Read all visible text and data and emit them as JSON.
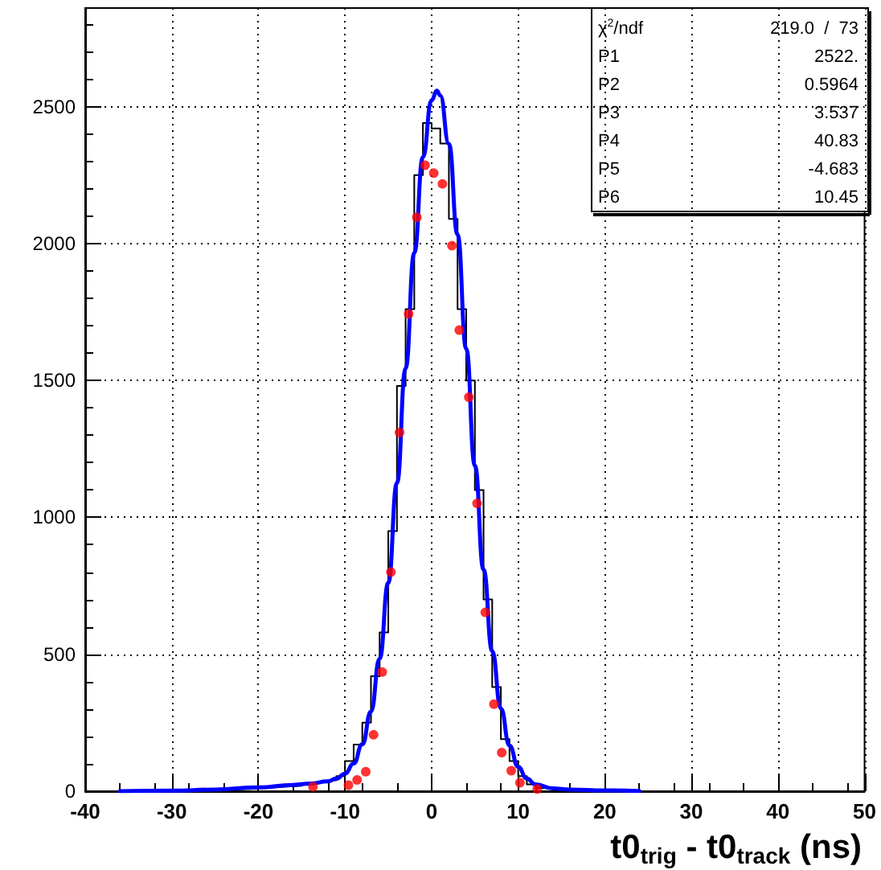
{
  "chart_data": {
    "type": "histogram",
    "xlabel": "t0$_{trig}$ - t0$_{track}$ (ns)",
    "xlim": [
      -40,
      50
    ],
    "xticks": [
      -40,
      -30,
      -20,
      -10,
      0,
      10,
      20,
      30,
      40,
      50
    ],
    "ylim": [
      0,
      2860
    ],
    "yticks": [
      0,
      500,
      1000,
      1500,
      2000,
      2500
    ],
    "grid": true,
    "annotations": [
      "χ$^{2}$/ndf 219.0  /  73",
      "P1 2522.",
      "P2 0.5964",
      "P3 3.537",
      "P4 40.83",
      "P5 -4.683",
      "P6 10.45"
    ],
    "series": [
      {
        "type": "histogram",
        "color": "#000000",
        "bins": [
          -36,
          -35,
          -34,
          -33,
          -32,
          -31,
          -30,
          -29,
          -28,
          -27,
          -26,
          -25,
          -24,
          -23,
          -22,
          -21,
          -20,
          -19,
          -18,
          -17,
          -16,
          -15,
          -14,
          -13,
          -12,
          -11,
          -10,
          -9,
          -8,
          -7,
          -6,
          -5,
          -4,
          -3,
          -2,
          -1,
          0,
          1,
          2,
          3,
          4,
          5,
          6,
          7,
          8,
          9,
          10,
          11,
          12,
          13,
          14,
          15,
          16,
          17,
          18,
          19,
          20,
          21,
          22,
          23,
          24
        ],
        "values": [
          1,
          1,
          1,
          1,
          2,
          2,
          2,
          3,
          3,
          4,
          5,
          5,
          6,
          7,
          8,
          10,
          12,
          14,
          16,
          18,
          20,
          25,
          30,
          35,
          40,
          55,
          110,
          170,
          250,
          420,
          580,
          950,
          1480,
          1760,
          2250,
          2440,
          2420,
          2365,
          2090,
          1760,
          1500,
          1100,
          700,
          380,
          190,
          110,
          55,
          25,
          12,
          8,
          6,
          5,
          4,
          3,
          3,
          2,
          2,
          1,
          1,
          1
        ]
      },
      {
        "type": "line",
        "color": "#0000ff",
        "x": [
          -36,
          -30,
          -25,
          -20,
          -16,
          -14,
          -12,
          -11,
          -10,
          -9,
          -8,
          -7,
          -6,
          -5,
          -4,
          -3,
          -2,
          -1,
          0,
          0.6,
          1,
          2,
          3,
          4,
          5,
          6,
          7,
          8,
          9,
          10,
          11,
          12,
          14,
          16,
          20,
          24
        ],
        "values": [
          0,
          2,
          6,
          14,
          23,
          28,
          36,
          46,
          64,
          101,
          171,
          291,
          484,
          761,
          1125,
          1544,
          1966,
          2315,
          2523,
          2558,
          2541,
          2364,
          2033,
          1616,
          1189,
          809,
          512,
          302,
          167,
          89,
          46,
          25,
          10,
          6,
          3,
          1
        ]
      },
      {
        "type": "scatter",
        "color": "#ff0000",
        "marker": "circle",
        "x": [
          -13.7,
          -9.6,
          -8.6,
          -7.6,
          -6.7,
          -5.7,
          -4.7,
          -3.7,
          -2.65,
          -1.7,
          -0.75,
          0.25,
          1.25,
          2.35,
          3.2,
          4.3,
          5.25,
          6.2,
          7.2,
          8.1,
          9.2,
          10.2,
          12.2
        ],
        "values": [
          16,
          22,
          41,
          71,
          206,
          435,
          800,
          1310,
          1743,
          2096,
          2286,
          2257,
          2218,
          1992,
          1684,
          1439,
          1051,
          653,
          318,
          141,
          75,
          31,
          8
        ]
      }
    ]
  }
}
